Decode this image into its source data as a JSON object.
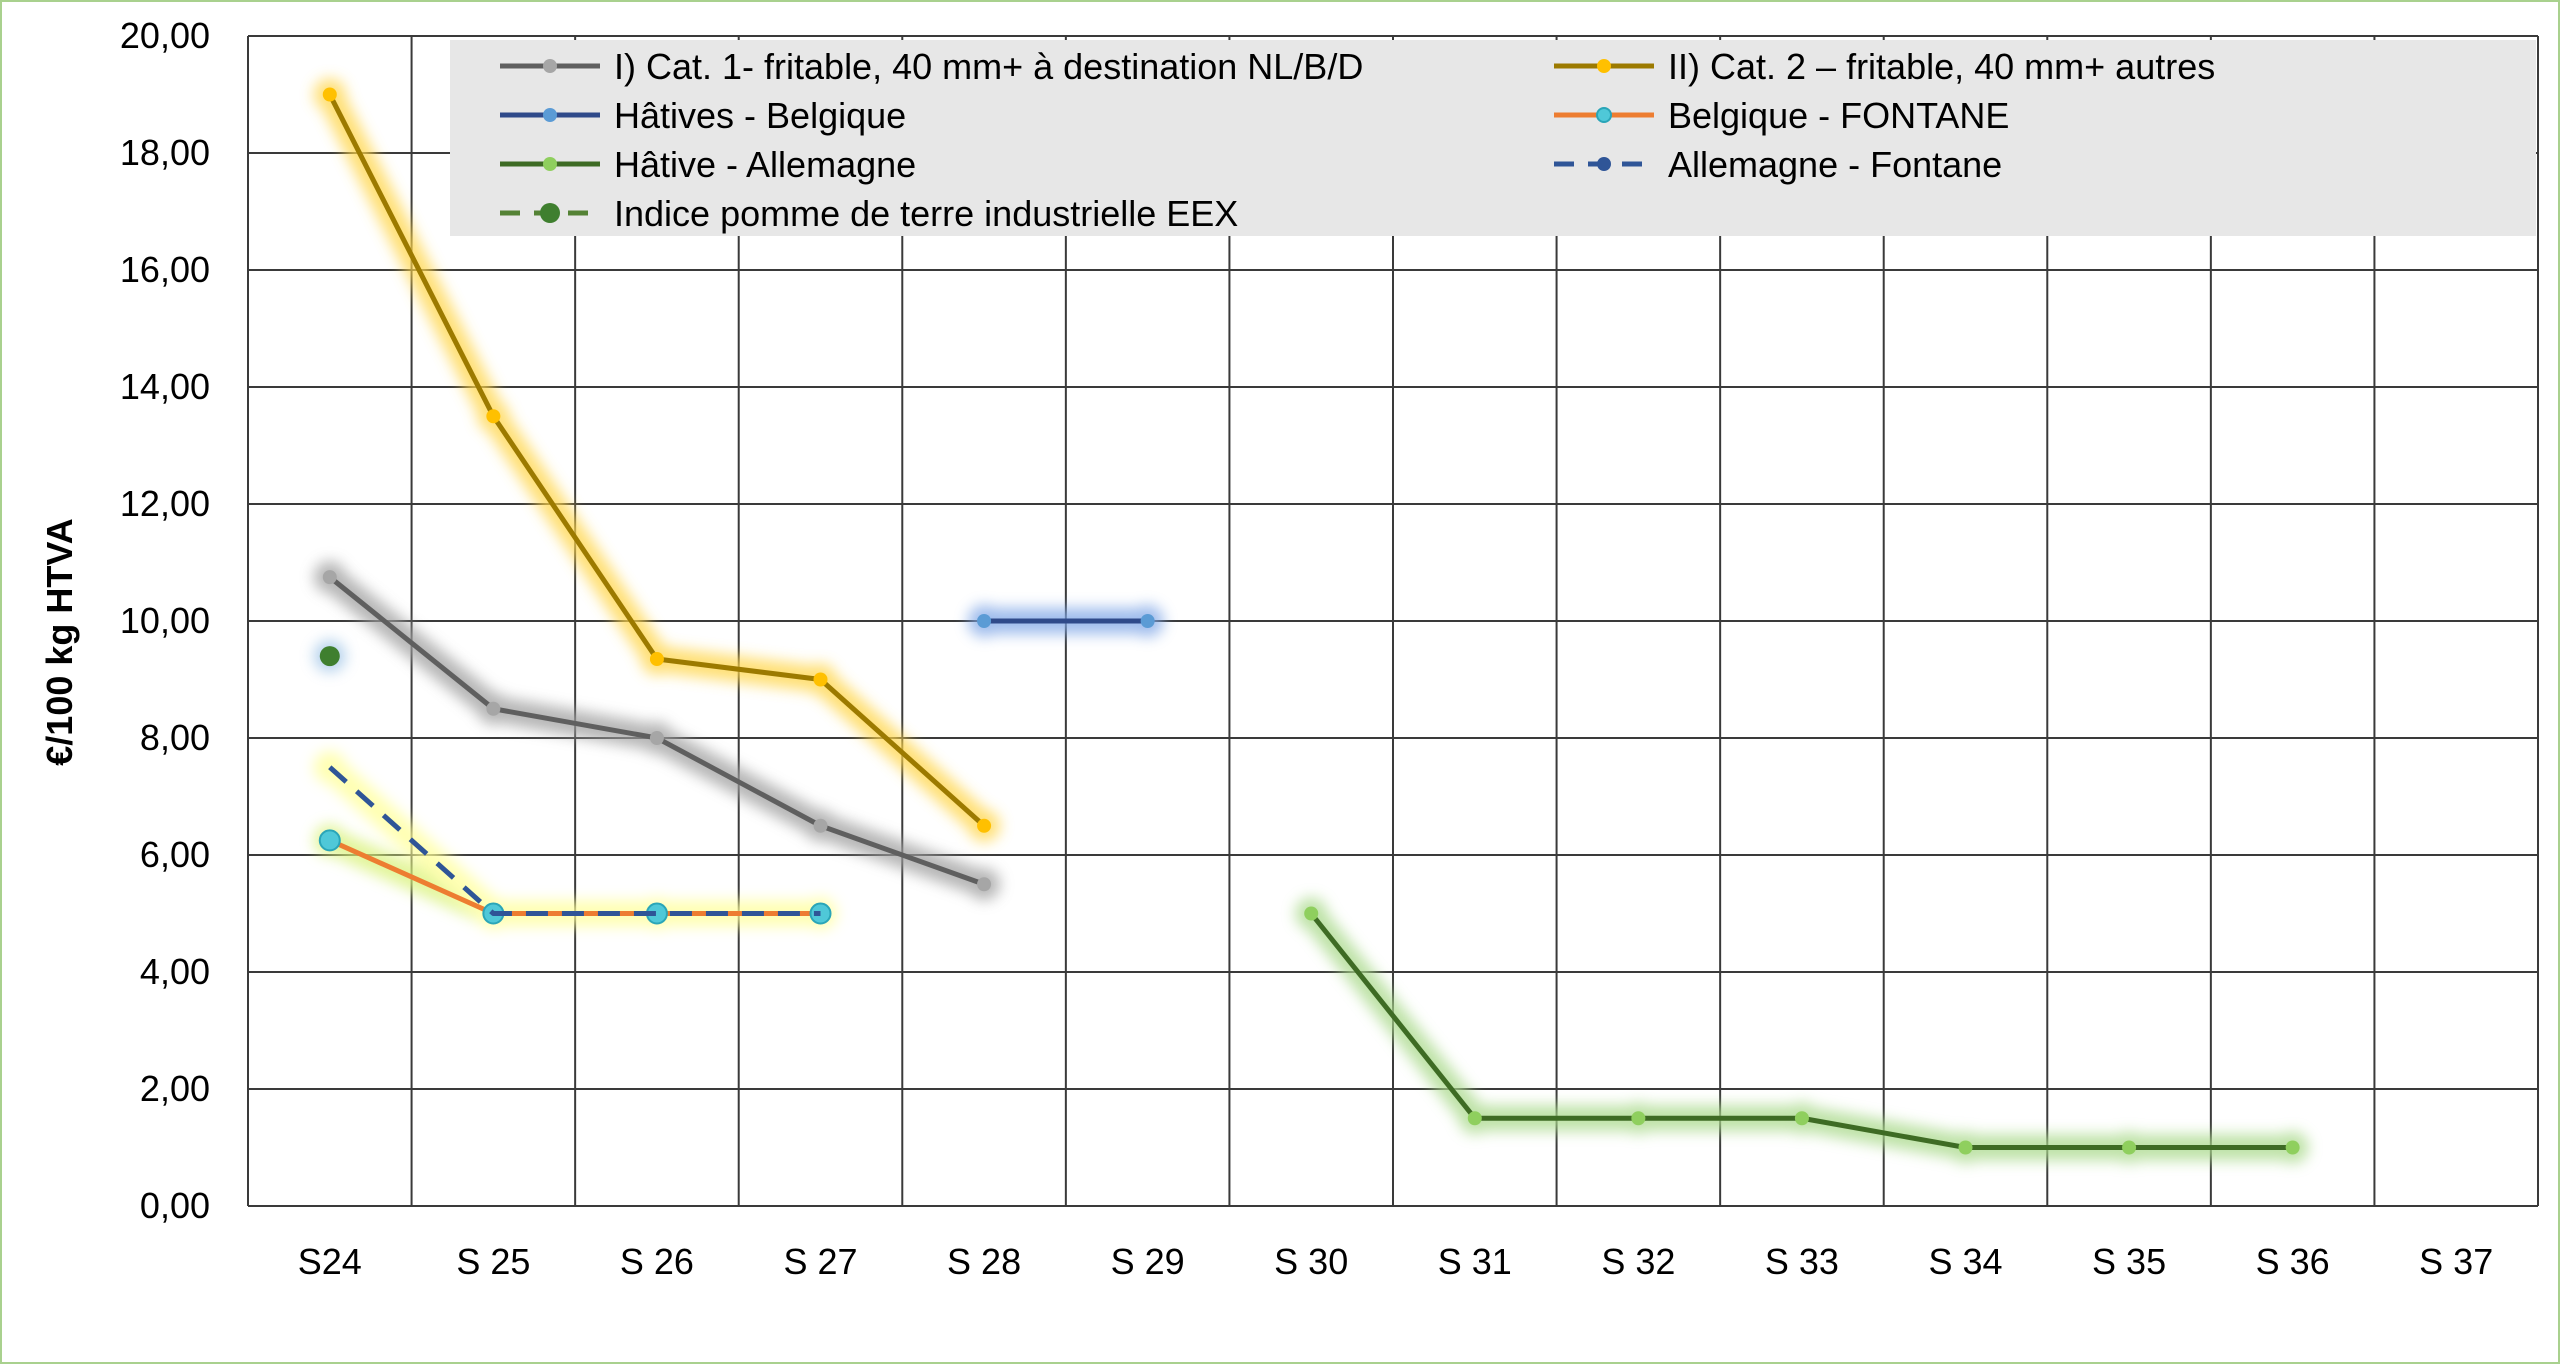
{
  "chart_data": {
    "type": "line",
    "title": "",
    "xlabel": "",
    "ylabel": "€/100 kg HTVA",
    "ylim": [
      0,
      20
    ],
    "ytick_step": 2,
    "ytick_labels": [
      "0,00",
      "2,00",
      "4,00",
      "6,00",
      "8,00",
      "10,00",
      "12,00",
      "14,00",
      "16,00",
      "18,00",
      "20,00"
    ],
    "grid": true,
    "legend_position": "top",
    "categories": [
      "S24",
      "S 25",
      "S 26",
      "S 27",
      "S 28",
      "S 29",
      "S 30",
      "S 31",
      "S 32",
      "S 33",
      "S 34",
      "S 35",
      "S 36",
      "S 37"
    ],
    "series": [
      {
        "name": "I) Cat. 1- fritable, 40 mm+ à destination NL/B/D",
        "color": "#5f5f5f",
        "marker_color": "#a6a6a6",
        "glow": "#9e9e9e",
        "dash": false,
        "values": [
          10.75,
          8.5,
          8.0,
          6.5,
          5.5,
          null,
          null,
          null,
          null,
          null,
          null,
          null,
          null,
          null
        ]
      },
      {
        "name": "II) Cat. 2 – fritable, 40 mm+ autres",
        "color": "#9c7a00",
        "marker_color": "#ffc000",
        "glow": "#ffd54a",
        "dash": false,
        "values": [
          19.0,
          13.5,
          9.35,
          9.0,
          6.5,
          null,
          null,
          null,
          null,
          null,
          null,
          null,
          null,
          null
        ]
      },
      {
        "name": "Hâtives - Belgique",
        "color": "#2f4a8a",
        "marker_color": "#5b9bd5",
        "glow": "#7fa6e6",
        "dash": false,
        "values": [
          null,
          null,
          null,
          null,
          10.0,
          10.0,
          null,
          null,
          null,
          null,
          null,
          null,
          null,
          null
        ]
      },
      {
        "name": "Belgique - FONTANE",
        "color": "#ed7d31",
        "marker_color": "#4fc8d8",
        "glow": "#d9f27a",
        "dash": false,
        "values": [
          6.25,
          5.0,
          5.0,
          5.0,
          null,
          null,
          null,
          null,
          null,
          null,
          null,
          null,
          null,
          null
        ]
      },
      {
        "name": "Hâtive - Allemagne",
        "color": "#3e6b24",
        "marker_color": "#8fcf5e",
        "glow": "#a9d98a",
        "dash": false,
        "values": [
          null,
          null,
          null,
          null,
          null,
          null,
          5.0,
          1.5,
          1.5,
          1.5,
          1.0,
          1.0,
          1.0,
          null
        ]
      },
      {
        "name": "Allemagne - Fontane",
        "color": "#2f5597",
        "marker_color": "#2f5597",
        "glow": "#ffff99",
        "dash": true,
        "values": [
          7.5,
          5.0,
          5.0,
          5.0,
          null,
          null,
          null,
          null,
          null,
          null,
          null,
          null,
          null,
          null
        ]
      },
      {
        "name": "Indice pomme de terre industrielle EEX",
        "color": "#548235",
        "marker_color": "#3f7f2f",
        "glow": "#9dc3e6",
        "dash": true,
        "values": [
          9.4,
          null,
          null,
          null,
          null,
          null,
          null,
          null,
          null,
          null,
          null,
          null,
          null,
          null
        ]
      }
    ]
  }
}
